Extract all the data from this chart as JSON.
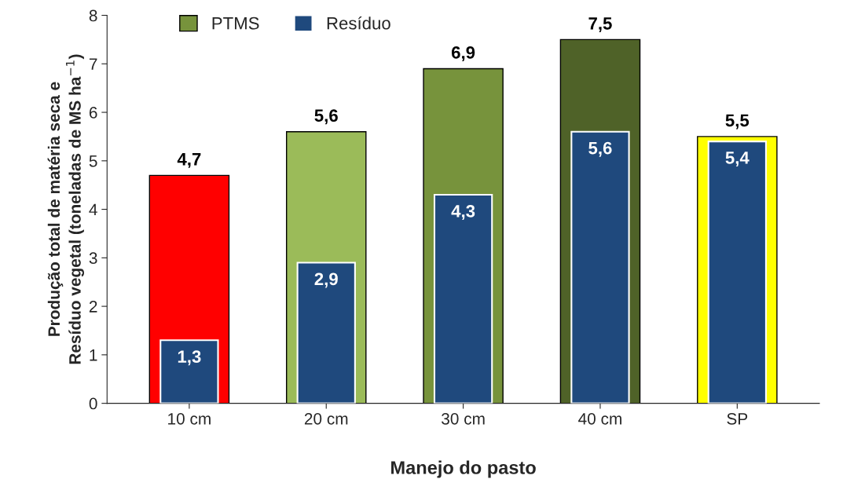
{
  "chart_data": {
    "type": "bar",
    "xlabel": "Manejo do pasto",
    "ylabel": "Produção total de matéria seca e\nResíduo vegetal (toneladas de MS ha$^{−1}$)",
    "categories": [
      "10 cm",
      "20 cm",
      "30 cm",
      "40 cm",
      "SP"
    ],
    "series": [
      {
        "name": "PTMS",
        "color": "#77933c",
        "colors": [
          "#ff0000",
          "#9bbb59",
          "#77933c",
          "#4f6228",
          "#ffff00"
        ],
        "values": [
          4.7,
          5.6,
          6.9,
          7.5,
          5.5
        ],
        "value_labels": [
          "4,7",
          "5,6",
          "6,9",
          "7,5",
          "5,5"
        ]
      },
      {
        "name": "Resíduo",
        "color": "#1f497d",
        "values": [
          1.3,
          2.9,
          4.3,
          5.6,
          5.4
        ],
        "value_labels": [
          "1,3",
          "2,9",
          "4,3",
          "5,6",
          "5,4"
        ]
      }
    ],
    "ylim": [
      0,
      8
    ],
    "yticks": [
      0,
      1,
      2,
      3,
      4,
      5,
      6,
      7,
      8
    ],
    "grid": false,
    "legend": "top left"
  }
}
